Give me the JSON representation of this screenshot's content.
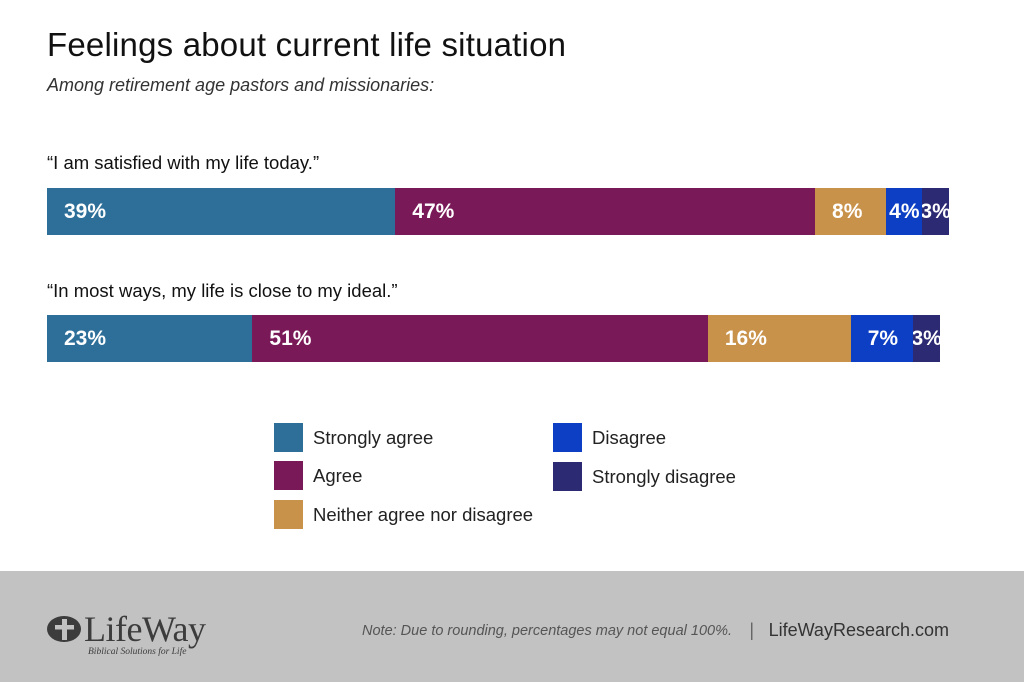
{
  "chart_data": {
    "type": "bar",
    "orientation": "horizontal-stacked-100",
    "title": "Feelings about current life situation",
    "subtitle": "Among retirement age pastors and missionaries:",
    "categories": [
      "“I am satisfied with my life today.”",
      "“In most ways, my life is close to my ideal.”"
    ],
    "series": [
      {
        "name": "Strongly agree",
        "color": "#2e6f9a",
        "values": [
          39,
          23
        ],
        "labels": [
          "39%",
          "23%"
        ]
      },
      {
        "name": "Agree",
        "color": "#7a1957",
        "values": [
          47,
          51
        ],
        "labels": [
          "47%",
          "51%"
        ]
      },
      {
        "name": "Neither agree nor disagree",
        "color": "#c9924a",
        "values": [
          8,
          16
        ],
        "labels": [
          "8%",
          "16%"
        ]
      },
      {
        "name": "Disagree",
        "color": "#0d3fc4",
        "values": [
          4,
          7
        ],
        "labels": [
          "4%",
          "7%"
        ]
      },
      {
        "name": "Strongly disagree",
        "color": "#2c2a73",
        "values": [
          3,
          3
        ],
        "labels": [
          "3%",
          "3%"
        ]
      }
    ],
    "xlim": [
      0,
      101
    ],
    "legend_position": "bottom-center",
    "grid": false
  },
  "footer": {
    "logo_text": "LifeWay",
    "logo_tagline": "Biblical Solutions for Life",
    "note": "Note: Due to rounding, percentages may not equal 100%.",
    "separator": "|",
    "site": "LifeWayResearch.com"
  }
}
